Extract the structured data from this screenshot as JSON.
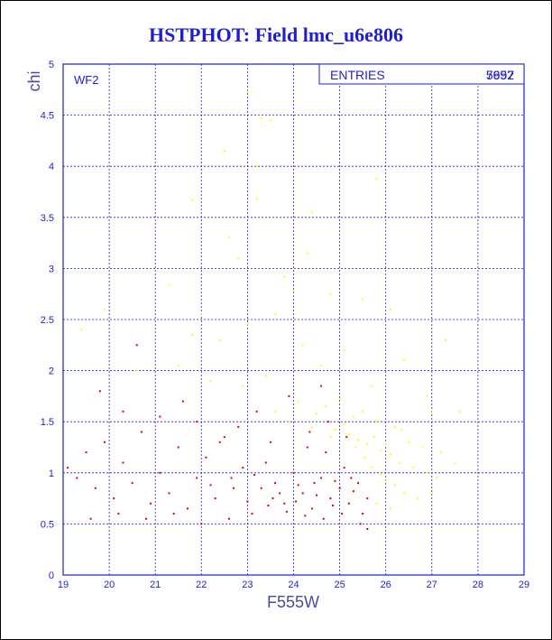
{
  "chart_data": {
    "type": "scatter",
    "title": "HSTPHOT: Field lmc_u6e806",
    "xlabel": "F555W",
    "ylabel": "chi",
    "xlim": [
      19,
      29
    ],
    "ylim": [
      0,
      5
    ],
    "x_ticks": [
      "19",
      "20",
      "21",
      "22",
      "23",
      "24",
      "25",
      "26",
      "27",
      "28",
      "29"
    ],
    "y_ticks": [
      "0",
      "0.5",
      "1",
      "1.5",
      "2",
      "2.5",
      "3",
      "3.5",
      "4",
      "4.5",
      "5"
    ],
    "grid": true,
    "field_label": "WF2",
    "stats_box": {
      "label": "ENTRIES",
      "values": [
        "7997",
        "5652"
      ]
    },
    "series": [
      {
        "color": "#ffff00",
        "points": [
          [
            23.0,
            4.73
          ],
          [
            22.5,
            4.15
          ],
          [
            23.2,
            4.0
          ],
          [
            23.3,
            4.47
          ],
          [
            23.5,
            4.45
          ],
          [
            21.8,
            3.67
          ],
          [
            23.2,
            3.68
          ],
          [
            24.4,
            3.55
          ],
          [
            25.8,
            3.88
          ],
          [
            22.6,
            3.3
          ],
          [
            22.8,
            3.1
          ],
          [
            24.3,
            3.15
          ],
          [
            21.3,
            2.84
          ],
          [
            23.8,
            2.92
          ],
          [
            24.0,
            2.78
          ],
          [
            24.8,
            2.75
          ],
          [
            25.5,
            2.7
          ],
          [
            26.1,
            2.6
          ],
          [
            23.6,
            2.55
          ],
          [
            22.0,
            2.55
          ],
          [
            21.8,
            2.35
          ],
          [
            22.4,
            2.3
          ],
          [
            23.0,
            2.45
          ],
          [
            24.2,
            2.25
          ],
          [
            25.1,
            2.2
          ],
          [
            26.4,
            2.1
          ],
          [
            27.3,
            2.3
          ],
          [
            19.4,
            2.4
          ],
          [
            19.9,
            2.6
          ],
          [
            20.6,
            2.0
          ],
          [
            21.5,
            2.05
          ],
          [
            22.2,
            1.9
          ],
          [
            22.9,
            1.85
          ],
          [
            23.4,
            1.95
          ],
          [
            24.6,
            2.05
          ],
          [
            25.7,
            1.85
          ],
          [
            26.9,
            1.75
          ],
          [
            27.6,
            1.6
          ],
          [
            27.0,
            1.6
          ],
          [
            24.1,
            1.7
          ],
          [
            24.7,
            1.65
          ],
          [
            25.0,
            1.72
          ],
          [
            25.3,
            1.55
          ],
          [
            25.5,
            1.6
          ],
          [
            25.8,
            1.5
          ],
          [
            26.2,
            1.45
          ],
          [
            26.5,
            1.3
          ],
          [
            26.8,
            1.25
          ],
          [
            27.2,
            1.2
          ],
          [
            27.5,
            1.1
          ],
          [
            24.4,
            1.45
          ],
          [
            24.9,
            1.42
          ],
          [
            25.2,
            1.38
          ],
          [
            25.4,
            1.32
          ],
          [
            25.6,
            1.28
          ],
          [
            25.9,
            1.22
          ],
          [
            26.1,
            1.18
          ],
          [
            26.3,
            1.1
          ],
          [
            26.6,
            1.05
          ],
          [
            26.9,
            1.0
          ],
          [
            27.1,
            0.95
          ],
          [
            25.7,
            1.05
          ],
          [
            25.9,
            0.98
          ],
          [
            26.0,
            0.92
          ],
          [
            26.2,
            0.88
          ],
          [
            26.4,
            0.8
          ],
          [
            26.7,
            0.75
          ],
          [
            27.0,
            0.8
          ],
          [
            25.8,
            0.7
          ],
          [
            26.1,
            0.65
          ],
          [
            23.6,
            1.6
          ],
          [
            23.9,
            1.5
          ],
          [
            24.5,
            1.58
          ],
          [
            24.8,
            1.35
          ],
          [
            25.1,
            1.48
          ],
          [
            25.35,
            1.25
          ],
          [
            25.55,
            1.15
          ],
          [
            25.75,
            1.35
          ],
          [
            26.0,
            1.28
          ],
          [
            26.35,
            1.42
          ]
        ]
      },
      {
        "color": "#e00000",
        "points": [
          [
            19.1,
            1.05
          ],
          [
            19.3,
            0.95
          ],
          [
            19.5,
            1.2
          ],
          [
            19.7,
            0.85
          ],
          [
            19.9,
            1.3
          ],
          [
            20.1,
            0.75
          ],
          [
            20.3,
            1.1
          ],
          [
            20.5,
            0.9
          ],
          [
            20.7,
            1.4
          ],
          [
            20.9,
            0.7
          ],
          [
            21.1,
            1.0
          ],
          [
            21.3,
            0.8
          ],
          [
            21.5,
            1.25
          ],
          [
            21.7,
            0.65
          ],
          [
            21.9,
            0.95
          ],
          [
            22.1,
            1.15
          ],
          [
            22.3,
            0.75
          ],
          [
            22.5,
            1.35
          ],
          [
            22.7,
            0.85
          ],
          [
            22.9,
            1.05
          ],
          [
            19.8,
            1.8
          ],
          [
            20.3,
            1.6
          ],
          [
            20.6,
            2.25
          ],
          [
            21.1,
            1.55
          ],
          [
            21.6,
            1.7
          ],
          [
            19.6,
            0.55
          ],
          [
            20.2,
            0.6
          ],
          [
            20.8,
            0.55
          ],
          [
            21.4,
            0.6
          ],
          [
            22.0,
            0.5
          ],
          [
            22.6,
            0.55
          ],
          [
            23.1,
            0.6
          ],
          [
            23.4,
            1.1
          ],
          [
            23.6,
            0.9
          ],
          [
            23.8,
            0.7
          ],
          [
            24.0,
            1.0
          ],
          [
            24.2,
            0.8
          ],
          [
            24.4,
            0.65
          ],
          [
            24.6,
            0.95
          ],
          [
            24.8,
            0.75
          ],
          [
            25.0,
            0.85
          ],
          [
            25.2,
            0.7
          ],
          [
            25.4,
            0.9
          ],
          [
            25.5,
            0.6
          ],
          [
            25.6,
            0.75
          ],
          [
            23.3,
            0.85
          ],
          [
            23.7,
            0.8
          ],
          [
            24.1,
            0.88
          ],
          [
            24.5,
            0.78
          ],
          [
            24.9,
            0.92
          ],
          [
            25.3,
            0.82
          ],
          [
            23.5,
            1.3
          ],
          [
            24.3,
            1.25
          ],
          [
            24.7,
            1.2
          ],
          [
            25.1,
            1.05
          ],
          [
            22.8,
            1.45
          ],
          [
            23.2,
            1.6
          ],
          [
            23.9,
            1.75
          ],
          [
            24.6,
            1.85
          ],
          [
            21.9,
            1.5
          ],
          [
            22.4,
            1.3
          ],
          [
            23.0,
            0.72
          ],
          [
            23.45,
            0.68
          ],
          [
            23.85,
            0.62
          ],
          [
            24.25,
            0.58
          ],
          [
            24.65,
            0.55
          ],
          [
            25.05,
            0.6
          ],
          [
            25.45,
            0.5
          ],
          [
            25.6,
            0.45
          ],
          [
            24.35,
            1.4
          ],
          [
            24.75,
            1.5
          ],
          [
            25.15,
            1.35
          ],
          [
            22.2,
            0.88
          ],
          [
            22.65,
            0.95
          ],
          [
            23.15,
            0.98
          ],
          [
            23.55,
            0.75
          ],
          [
            24.05,
            0.72
          ],
          [
            24.45,
            0.9
          ],
          [
            24.85,
            0.68
          ],
          [
            25.25,
            0.95
          ]
        ]
      }
    ]
  }
}
